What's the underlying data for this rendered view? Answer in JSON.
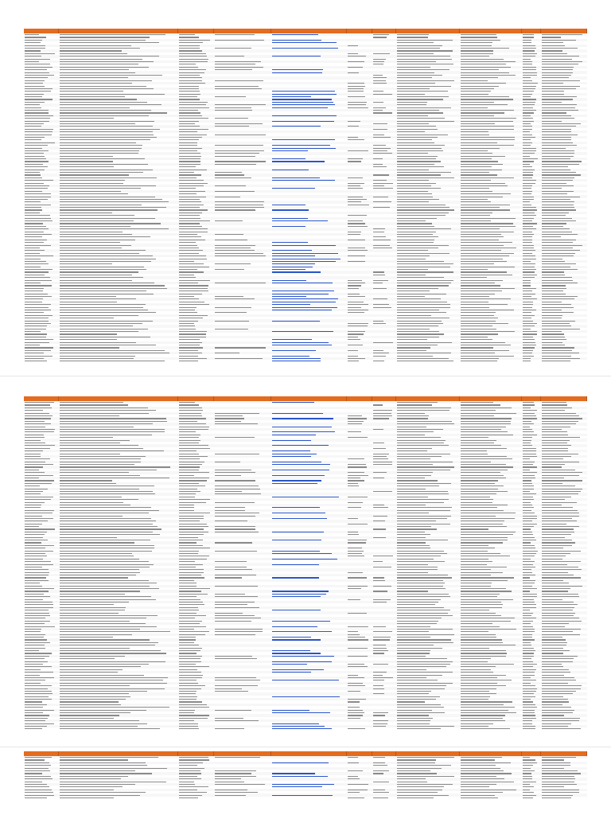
{
  "sheet": {
    "columns": [
      {
        "key": "id",
        "label": ""
      },
      {
        "key": "razon_social",
        "label": ""
      },
      {
        "key": "rfc",
        "label": ""
      },
      {
        "key": "contacto",
        "label": ""
      },
      {
        "key": "correo",
        "label": ""
      },
      {
        "key": "telefono_1",
        "label": ""
      },
      {
        "key": "telefono_2",
        "label": ""
      },
      {
        "key": "calle",
        "label": ""
      },
      {
        "key": "colonia",
        "label": ""
      },
      {
        "key": "codigo_postal",
        "label": ""
      },
      {
        "key": "municipio",
        "label": ""
      }
    ],
    "accent_color": "#e36c1f",
    "link_color": "#2a55c9"
  },
  "pages": [
    {
      "rows": []
    },
    {
      "rows": []
    },
    {
      "rows": []
    }
  ]
}
